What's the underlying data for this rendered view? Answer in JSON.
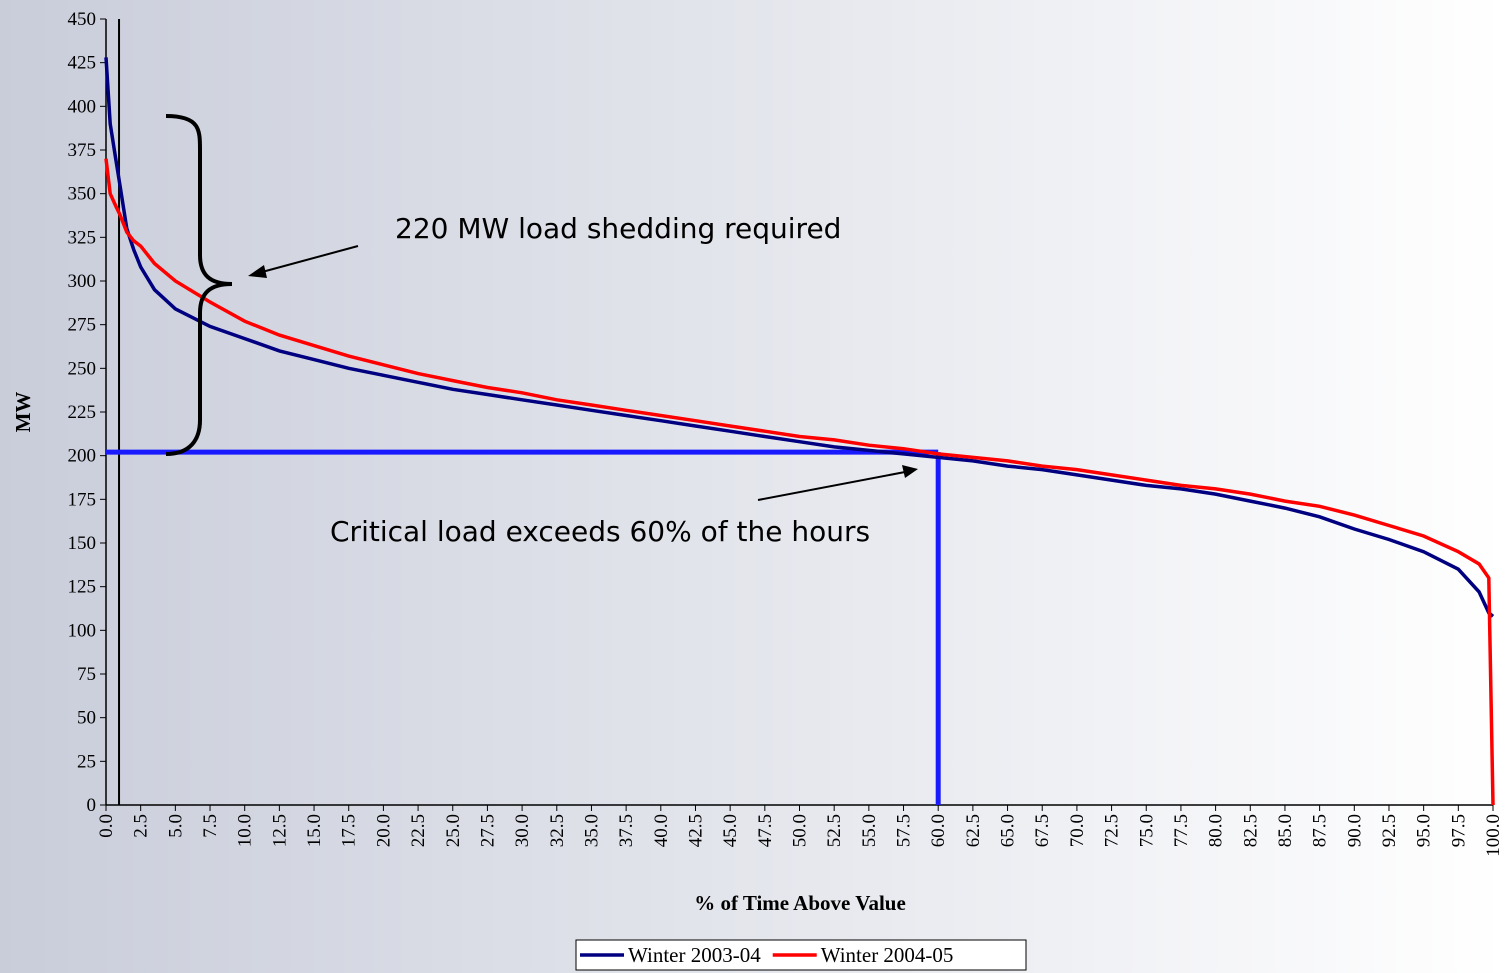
{
  "chart_data": {
    "type": "line",
    "x_label": "% of Time Above Value",
    "y_label": "MW",
    "x": [
      0,
      0.3,
      0.7,
      1,
      1.5,
      2,
      2.5,
      3.5,
      5,
      7.5,
      10,
      12.5,
      15,
      17.5,
      20,
      22.5,
      25,
      27.5,
      30,
      32.5,
      35,
      37.5,
      40,
      42.5,
      45,
      47.5,
      50,
      52.5,
      55,
      57.5,
      60,
      62.5,
      65,
      67.5,
      70,
      72.5,
      75,
      77.5,
      80,
      82.5,
      85,
      87.5,
      90,
      92.5,
      95,
      97.5,
      99,
      99.7,
      100
    ],
    "series": [
      {
        "name": "Winter 2003-04",
        "color": "#000080",
        "values": [
          428,
          390,
          370,
          355,
          330,
          318,
          308,
          295,
          284,
          274,
          267,
          260,
          255,
          250,
          246,
          242,
          238,
          235,
          232,
          229,
          226,
          223,
          220,
          217,
          214,
          211,
          208,
          205,
          203,
          201,
          199,
          197,
          194,
          192,
          189,
          186,
          183,
          181,
          178,
          174,
          170,
          165,
          158,
          152,
          145,
          135,
          122,
          110,
          108
        ]
      },
      {
        "name": "Winter 2004-05",
        "color": "#ff0000",
        "values": [
          370,
          350,
          343,
          338,
          328,
          323,
          320,
          310,
          300,
          288,
          277,
          269,
          263,
          257,
          252,
          247,
          243,
          239,
          236,
          232,
          229,
          226,
          223,
          220,
          217,
          214,
          211,
          209,
          206,
          204,
          201,
          199,
          197,
          194,
          192,
          189,
          186,
          183,
          181,
          178,
          174,
          171,
          166,
          160,
          154,
          145,
          138,
          130,
          0
        ]
      }
    ],
    "xlim": [
      0,
      100
    ],
    "ylim": [
      0,
      450
    ],
    "yticks": [
      0,
      25,
      50,
      75,
      100,
      125,
      150,
      175,
      200,
      225,
      250,
      275,
      300,
      325,
      350,
      375,
      400,
      425,
      450
    ],
    "xticks": [
      {
        "value": 0,
        "label": "0.0"
      },
      {
        "value": 2.5,
        "label": "2.5"
      },
      {
        "value": 5,
        "label": "5.0"
      },
      {
        "value": 7.5,
        "label": "7.5"
      },
      {
        "value": 10,
        "label": "10.0"
      },
      {
        "value": 12.5,
        "label": "12.5"
      },
      {
        "value": 15,
        "label": "15.0"
      },
      {
        "value": 17.5,
        "label": "17.5"
      },
      {
        "value": 20,
        "label": "20.0"
      },
      {
        "value": 22.5,
        "label": "22.5"
      },
      {
        "value": 25,
        "label": "25.0"
      },
      {
        "value": 27.5,
        "label": "27.5"
      },
      {
        "value": 30,
        "label": "30.0"
      },
      {
        "value": 32.5,
        "label": "32.5"
      },
      {
        "value": 35,
        "label": "35.0"
      },
      {
        "value": 37.5,
        "label": "37.5"
      },
      {
        "value": 40,
        "label": "40.0"
      },
      {
        "value": 42.5,
        "label": "42.5"
      },
      {
        "value": 45,
        "label": "45.0"
      },
      {
        "value": 47.5,
        "label": "47.5"
      },
      {
        "value": 50,
        "label": "50.0"
      },
      {
        "value": 52.5,
        "label": "52.5"
      },
      {
        "value": 55,
        "label": "55.0"
      },
      {
        "value": 57.5,
        "label": "57.5"
      },
      {
        "value": 60,
        "label": "60.0"
      },
      {
        "value": 62.5,
        "label": "62.5"
      },
      {
        "value": 65,
        "label": "65.0"
      },
      {
        "value": 67.5,
        "label": "67.5"
      },
      {
        "value": 70,
        "label": "70.0"
      },
      {
        "value": 72.5,
        "label": "72.5"
      },
      {
        "value": 75,
        "label": "75.0"
      },
      {
        "value": 77.5,
        "label": "77.5"
      },
      {
        "value": 80,
        "label": "80.0"
      },
      {
        "value": 82.5,
        "label": "82.5"
      },
      {
        "value": 85,
        "label": "85.0"
      },
      {
        "value": 87.5,
        "label": "87.5"
      },
      {
        "value": 90,
        "label": "90.0"
      },
      {
        "value": 92.5,
        "label": "92.5"
      },
      {
        "value": 95,
        "label": "95.0"
      },
      {
        "value": 97.5,
        "label": "97.5"
      },
      {
        "value": 100,
        "label": "100.0"
      }
    ],
    "critical_load": {
      "x": 60,
      "y": 202,
      "color": "#1a1aff"
    },
    "marker_line_x": 0.94,
    "annotations": [
      "220 MW load shedding required",
      "Critical load exceeds 60% of the hours"
    ],
    "legend": "bottom"
  }
}
